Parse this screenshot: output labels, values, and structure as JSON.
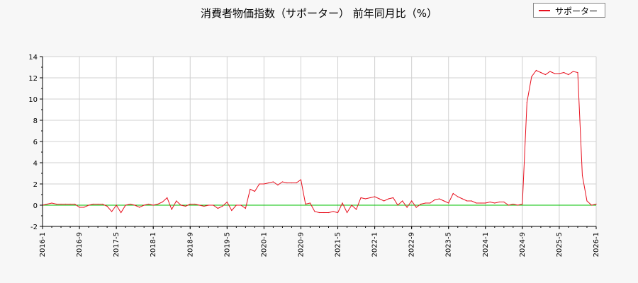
{
  "chart_data": {
    "type": "line",
    "title": "消費者物価指数（サポーター） 前年同月比（%）",
    "xlabel": "",
    "ylabel": "",
    "ylim": [
      -2,
      14
    ],
    "xlim": [
      "2016-1",
      "2026-1"
    ],
    "yticks": [
      -2,
      0,
      2,
      4,
      6,
      8,
      10,
      12,
      14
    ],
    "xticks": [
      "2016-1",
      "2016-9",
      "2017-5",
      "2018-1",
      "2018-9",
      "2019-5",
      "2020-1",
      "2020-9",
      "2021-5",
      "2022-1",
      "2022-9",
      "2023-5",
      "2024-1",
      "2024-9",
      "2025-5",
      "2026-1"
    ],
    "grid": true,
    "legend_position": "top-right",
    "colors": {
      "series": "#e8101e",
      "zero_line": "#00c000",
      "grid": "#d0d0d0"
    },
    "series": [
      {
        "name": "サポーター",
        "x": [
          "2016-1",
          "2016-2",
          "2016-3",
          "2016-4",
          "2016-5",
          "2016-6",
          "2016-7",
          "2016-8",
          "2016-9",
          "2016-10",
          "2016-11",
          "2016-12",
          "2017-1",
          "2017-2",
          "2017-3",
          "2017-4",
          "2017-5",
          "2017-6",
          "2017-7",
          "2017-8",
          "2017-9",
          "2017-10",
          "2017-11",
          "2017-12",
          "2018-1",
          "2018-2",
          "2018-3",
          "2018-4",
          "2018-5",
          "2018-6",
          "2018-7",
          "2018-8",
          "2018-9",
          "2018-10",
          "2018-11",
          "2018-12",
          "2019-1",
          "2019-2",
          "2019-3",
          "2019-4",
          "2019-5",
          "2019-6",
          "2019-7",
          "2019-8",
          "2019-9",
          "2019-10",
          "2019-11",
          "2019-12",
          "2020-1",
          "2020-2",
          "2020-3",
          "2020-4",
          "2020-5",
          "2020-6",
          "2020-7",
          "2020-8",
          "2020-9",
          "2020-10",
          "2020-11",
          "2020-12",
          "2021-1",
          "2021-2",
          "2021-3",
          "2021-4",
          "2021-5",
          "2021-6",
          "2021-7",
          "2021-8",
          "2021-9",
          "2021-10",
          "2021-11",
          "2021-12",
          "2022-1",
          "2022-2",
          "2022-3",
          "2022-4",
          "2022-5",
          "2022-6",
          "2022-7",
          "2022-8",
          "2022-9",
          "2022-10",
          "2022-11",
          "2022-12",
          "2023-1",
          "2023-2",
          "2023-3",
          "2023-4",
          "2023-5",
          "2023-6",
          "2023-7",
          "2023-8",
          "2023-9",
          "2023-10",
          "2023-11",
          "2023-12",
          "2024-1",
          "2024-2",
          "2024-3",
          "2024-4",
          "2024-5",
          "2024-6",
          "2024-7",
          "2024-8",
          "2024-9",
          "2024-10",
          "2024-11",
          "2024-12",
          "2025-1",
          "2025-2",
          "2025-3",
          "2025-4",
          "2025-5",
          "2025-6",
          "2025-7",
          "2025-8",
          "2025-9",
          "2025-10",
          "2025-11",
          "2025-12",
          "2026-1"
        ],
        "values": [
          0.0,
          0.1,
          0.2,
          0.1,
          0.1,
          0.1,
          0.1,
          0.1,
          -0.2,
          -0.2,
          0.0,
          0.1,
          0.1,
          0.1,
          -0.1,
          -0.6,
          0.0,
          -0.7,
          0.0,
          0.1,
          0.0,
          -0.2,
          0.0,
          0.1,
          0.0,
          0.1,
          0.3,
          0.7,
          -0.4,
          0.4,
          0.0,
          -0.1,
          0.1,
          0.1,
          0.0,
          -0.1,
          0.0,
          0.0,
          -0.3,
          -0.1,
          0.3,
          -0.5,
          0.0,
          0.0,
          -0.3,
          1.5,
          1.3,
          2.0,
          2.0,
          2.1,
          2.2,
          1.9,
          2.2,
          2.1,
          2.1,
          2.1,
          2.4,
          0.1,
          0.2,
          -0.6,
          -0.7,
          -0.7,
          -0.7,
          -0.6,
          -0.7,
          0.2,
          -0.7,
          0.0,
          -0.4,
          0.7,
          0.6,
          0.7,
          0.8,
          0.6,
          0.4,
          0.6,
          0.7,
          0.0,
          0.4,
          -0.2,
          0.4,
          -0.2,
          0.1,
          0.2,
          0.2,
          0.5,
          0.6,
          0.4,
          0.2,
          1.1,
          0.8,
          0.6,
          0.4,
          0.4,
          0.2,
          0.2,
          0.2,
          0.3,
          0.2,
          0.3,
          0.3,
          0.0,
          0.1,
          0.0,
          0.1,
          9.7,
          12.1,
          12.7,
          12.5,
          12.3,
          12.6,
          12.4,
          12.4,
          12.5,
          12.3,
          12.6,
          12.5,
          2.8,
          0.4,
          0.0,
          0.1
        ]
      }
    ]
  }
}
